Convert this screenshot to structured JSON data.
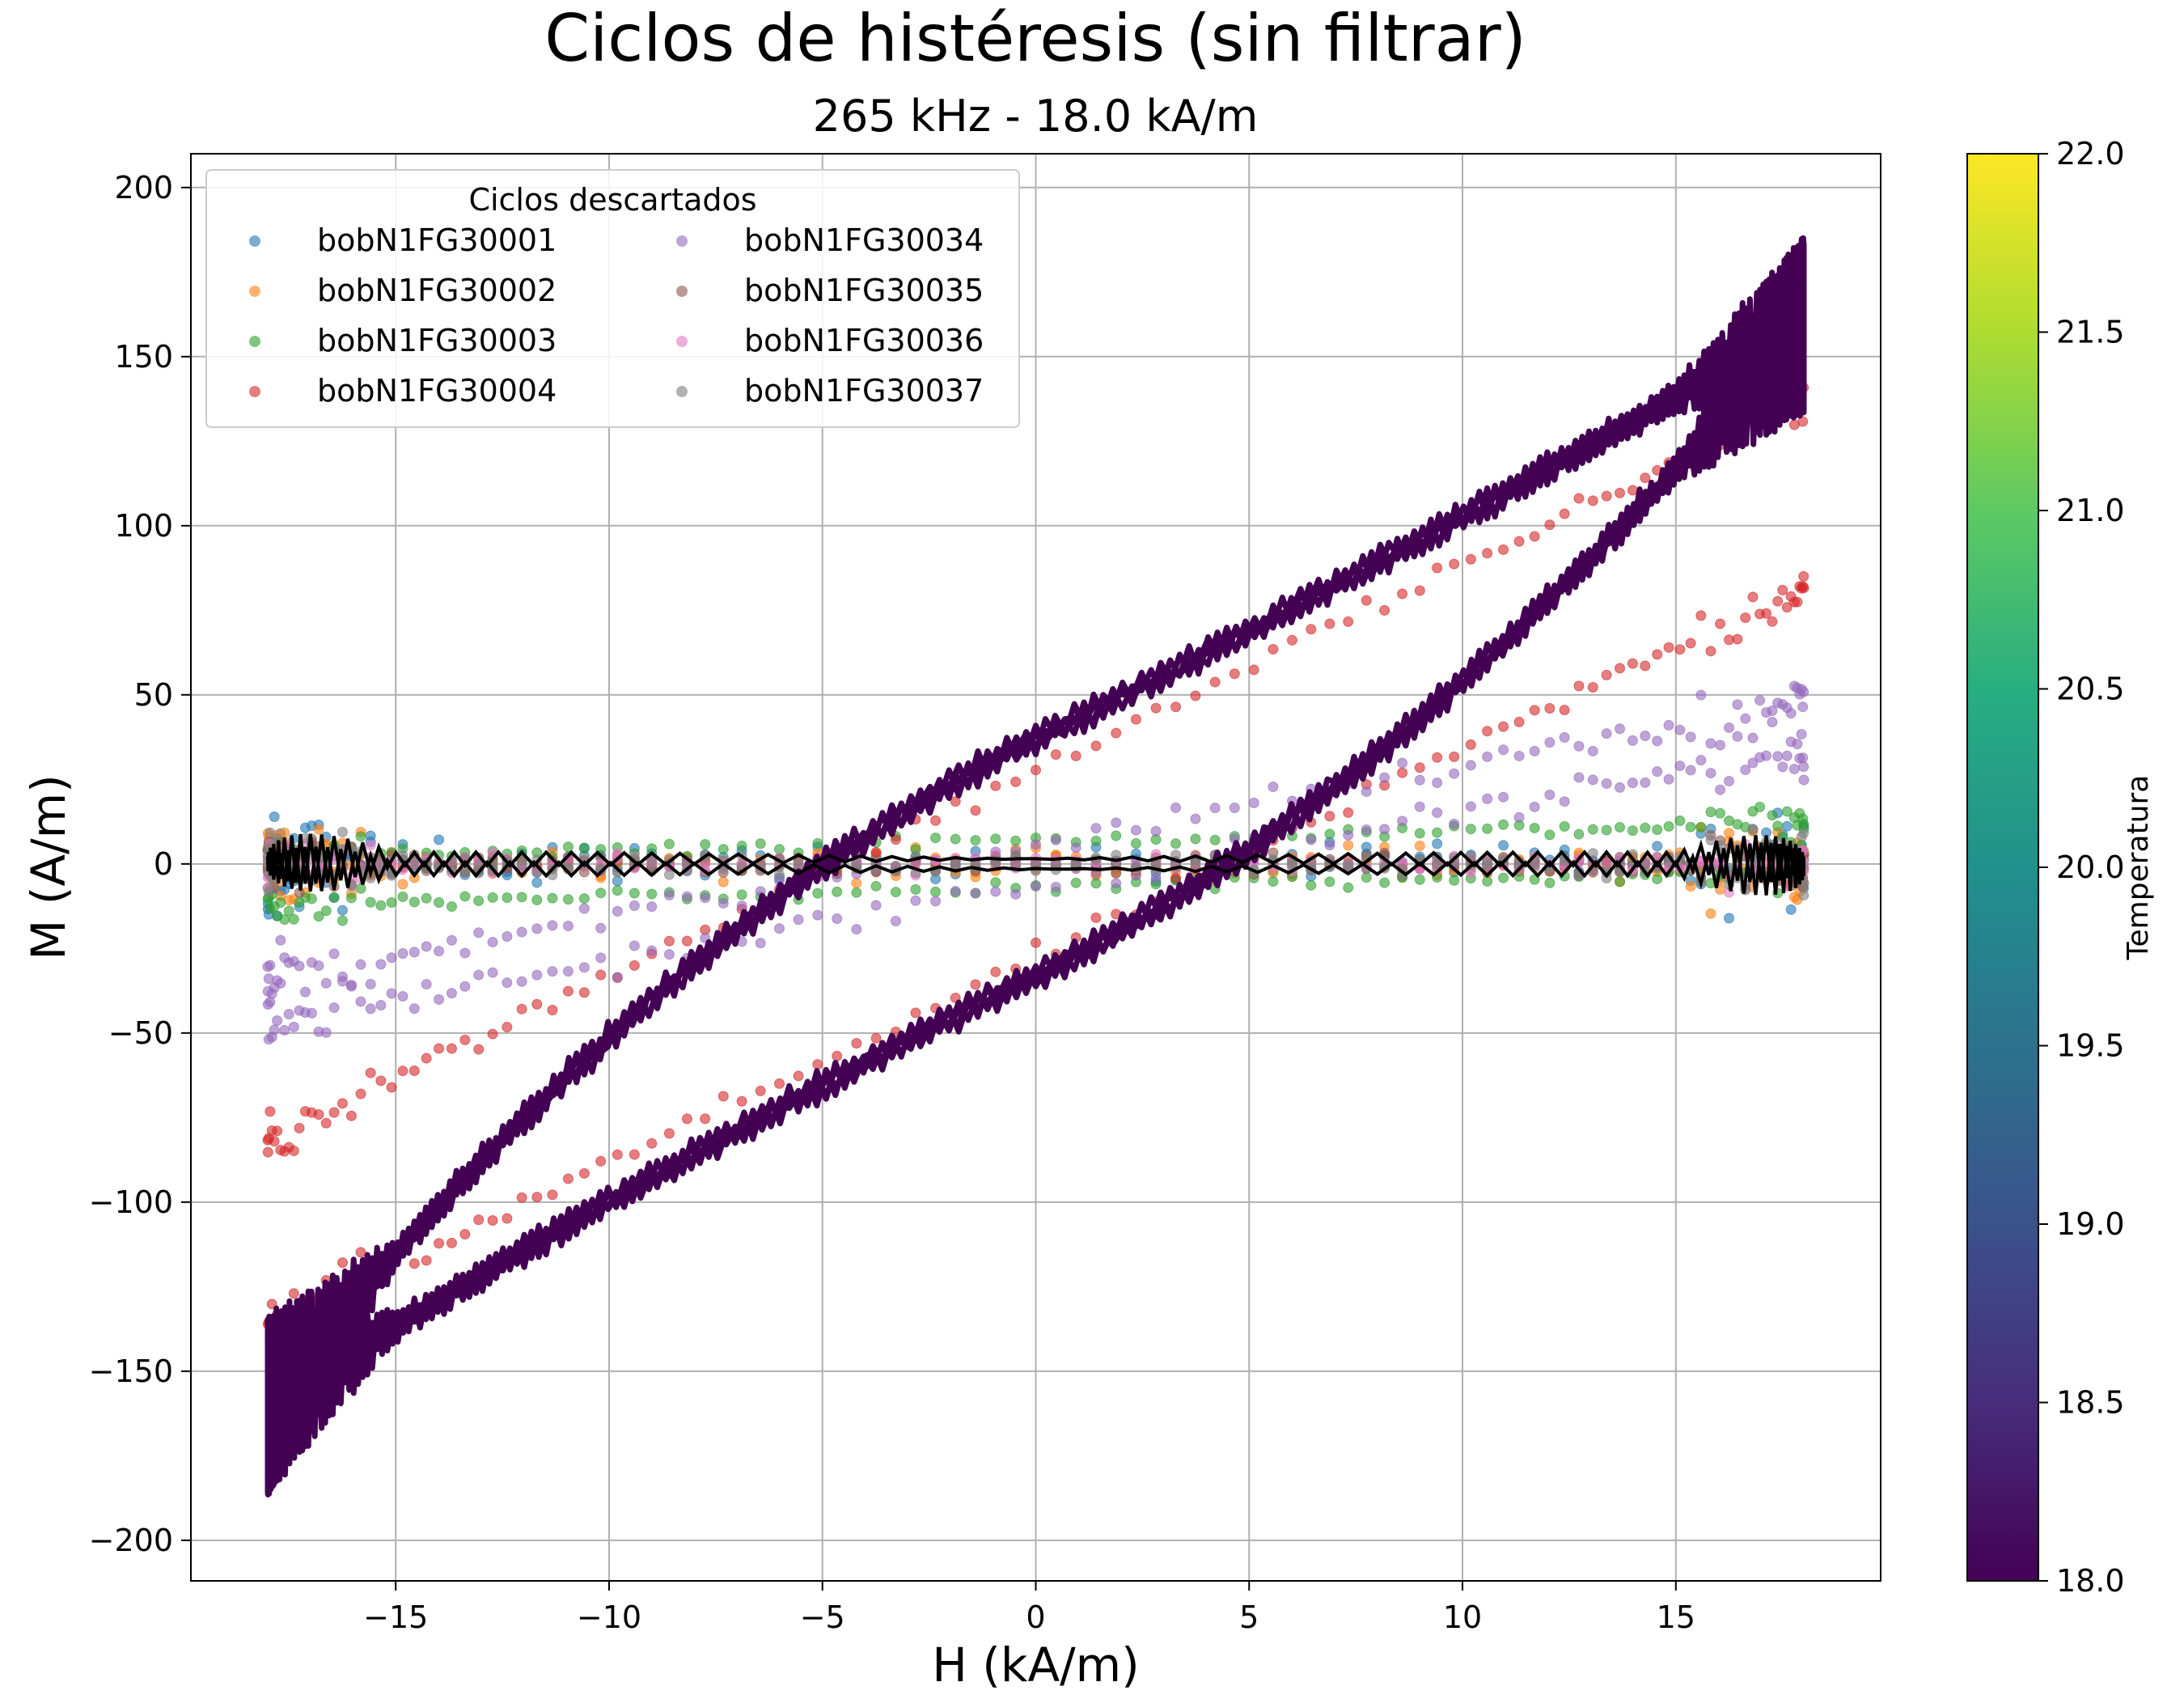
{
  "chart_data": {
    "type": "scatter",
    "title": "Ciclos de histéresis (sin filtrar)",
    "subtitle": "265 kHz - 18.0 kA/m",
    "xlabel": "H (kA/m)",
    "ylabel": "M (A/m)",
    "xlim": [
      -19.8,
      19.8
    ],
    "ylim": [
      -212,
      210
    ],
    "x_ticks": [
      -15,
      -10,
      -5,
      0,
      5,
      10,
      15
    ],
    "x_tick_labels": [
      "−15",
      "−10",
      "−5",
      "0",
      "5",
      "10",
      "15"
    ],
    "y_ticks": [
      -200,
      -150,
      -100,
      -50,
      0,
      50,
      100,
      150,
      200
    ],
    "y_tick_labels": [
      "−200",
      "−150",
      "−100",
      "−50",
      "0",
      "50",
      "100",
      "150",
      "200"
    ],
    "grid": true,
    "legend": {
      "title": "Ciclos descartados",
      "placement": "upper-left",
      "columns": 2
    },
    "colorbar": {
      "label": "Temperatura",
      "range": [
        18.0,
        22.0
      ],
      "ticks": [
        18.0,
        18.5,
        19.0,
        19.5,
        20.0,
        20.5,
        21.0,
        21.5,
        22.0
      ],
      "tick_labels": [
        "18.0",
        "18.5",
        "19.0",
        "19.5",
        "20.0",
        "20.5",
        "21.0",
        "21.5",
        "22.0"
      ],
      "colormap": "viridis"
    },
    "series": [
      {
        "name": "bobN1FG30001",
        "color": "#1f77b4",
        "kind": "scatter",
        "amplitude": 0,
        "coercivity": 0,
        "noise": 8
      },
      {
        "name": "bobN1FG30002",
        "color": "#ff7f0e",
        "kind": "scatter",
        "amplitude": 0,
        "coercivity": 0,
        "noise": 7
      },
      {
        "name": "bobN1FG30003",
        "color": "#2ca02c",
        "kind": "scatter",
        "amplitude": 5,
        "coercivity": -25,
        "noise": 3
      },
      {
        "name": "bobN1FG30004",
        "color": "#d62728",
        "kind": "scatter",
        "amplitude": 110,
        "coercivity": 4.5,
        "noise": 5
      },
      {
        "name": "bobN1FG30034",
        "color": "#9467bd",
        "kind": "scatter",
        "amplitude": 40,
        "coercivity": 3.0,
        "noise": 6
      },
      {
        "name": "bobN1FG30035",
        "color": "#8c564b",
        "kind": "scatter",
        "amplitude": 0,
        "coercivity": 0,
        "noise": 4
      },
      {
        "name": "bobN1FG30036",
        "color": "#e377c2",
        "kind": "scatter",
        "amplitude": 0,
        "coercivity": 0,
        "noise": 4
      },
      {
        "name": "bobN1FG30037",
        "color": "#7f7f7f",
        "kind": "scatter",
        "amplitude": 0,
        "coercivity": 0,
        "noise": 5
      }
    ],
    "main_loops": {
      "color": "#440154",
      "temperature": 18.0,
      "h_max": 18.0,
      "m_max": 160,
      "m_remanence_up": 37,
      "m_remanence_down": -33,
      "coercivity": 3.6
    },
    "mean_loop": {
      "color": "#000000",
      "amplitude": 0
    }
  }
}
